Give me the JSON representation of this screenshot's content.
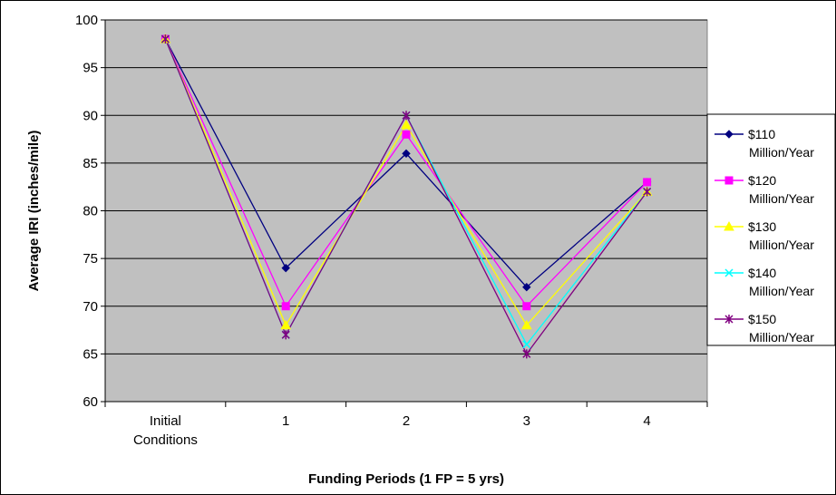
{
  "chart_data": {
    "type": "line",
    "title": "",
    "xlabel": "Funding Periods (1 FP = 5 yrs)",
    "ylabel": "Average IRI (inches/mile)",
    "categories": [
      "Initial\nConditions",
      "1",
      "2",
      "3",
      "4"
    ],
    "ylim": [
      60,
      100
    ],
    "yticks": [
      60,
      65,
      70,
      75,
      80,
      85,
      90,
      95,
      100
    ],
    "grid": "horizontal",
    "legend": "right",
    "plot_background": "#c0c0c0",
    "series": [
      {
        "name": "$110\nMillion/Year",
        "color": "#000080",
        "marker": "diamond",
        "values": [
          98,
          74,
          86,
          72,
          83
        ]
      },
      {
        "name": "$120\nMillion/Year",
        "color": "#ff00ff",
        "marker": "square",
        "values": [
          98,
          70,
          88,
          70,
          83
        ]
      },
      {
        "name": "$130\nMillion/Year",
        "color": "#ffff00",
        "marker": "triangle",
        "values": [
          98,
          68,
          89,
          68,
          82
        ]
      },
      {
        "name": "$140\nMillion/Year",
        "color": "#00ffff",
        "marker": "x",
        "values": [
          98,
          67,
          90,
          66,
          82
        ]
      },
      {
        "name": "$150\nMillion/Year",
        "color": "#800080",
        "marker": "star",
        "values": [
          98,
          67,
          90,
          65,
          82
        ]
      }
    ]
  }
}
